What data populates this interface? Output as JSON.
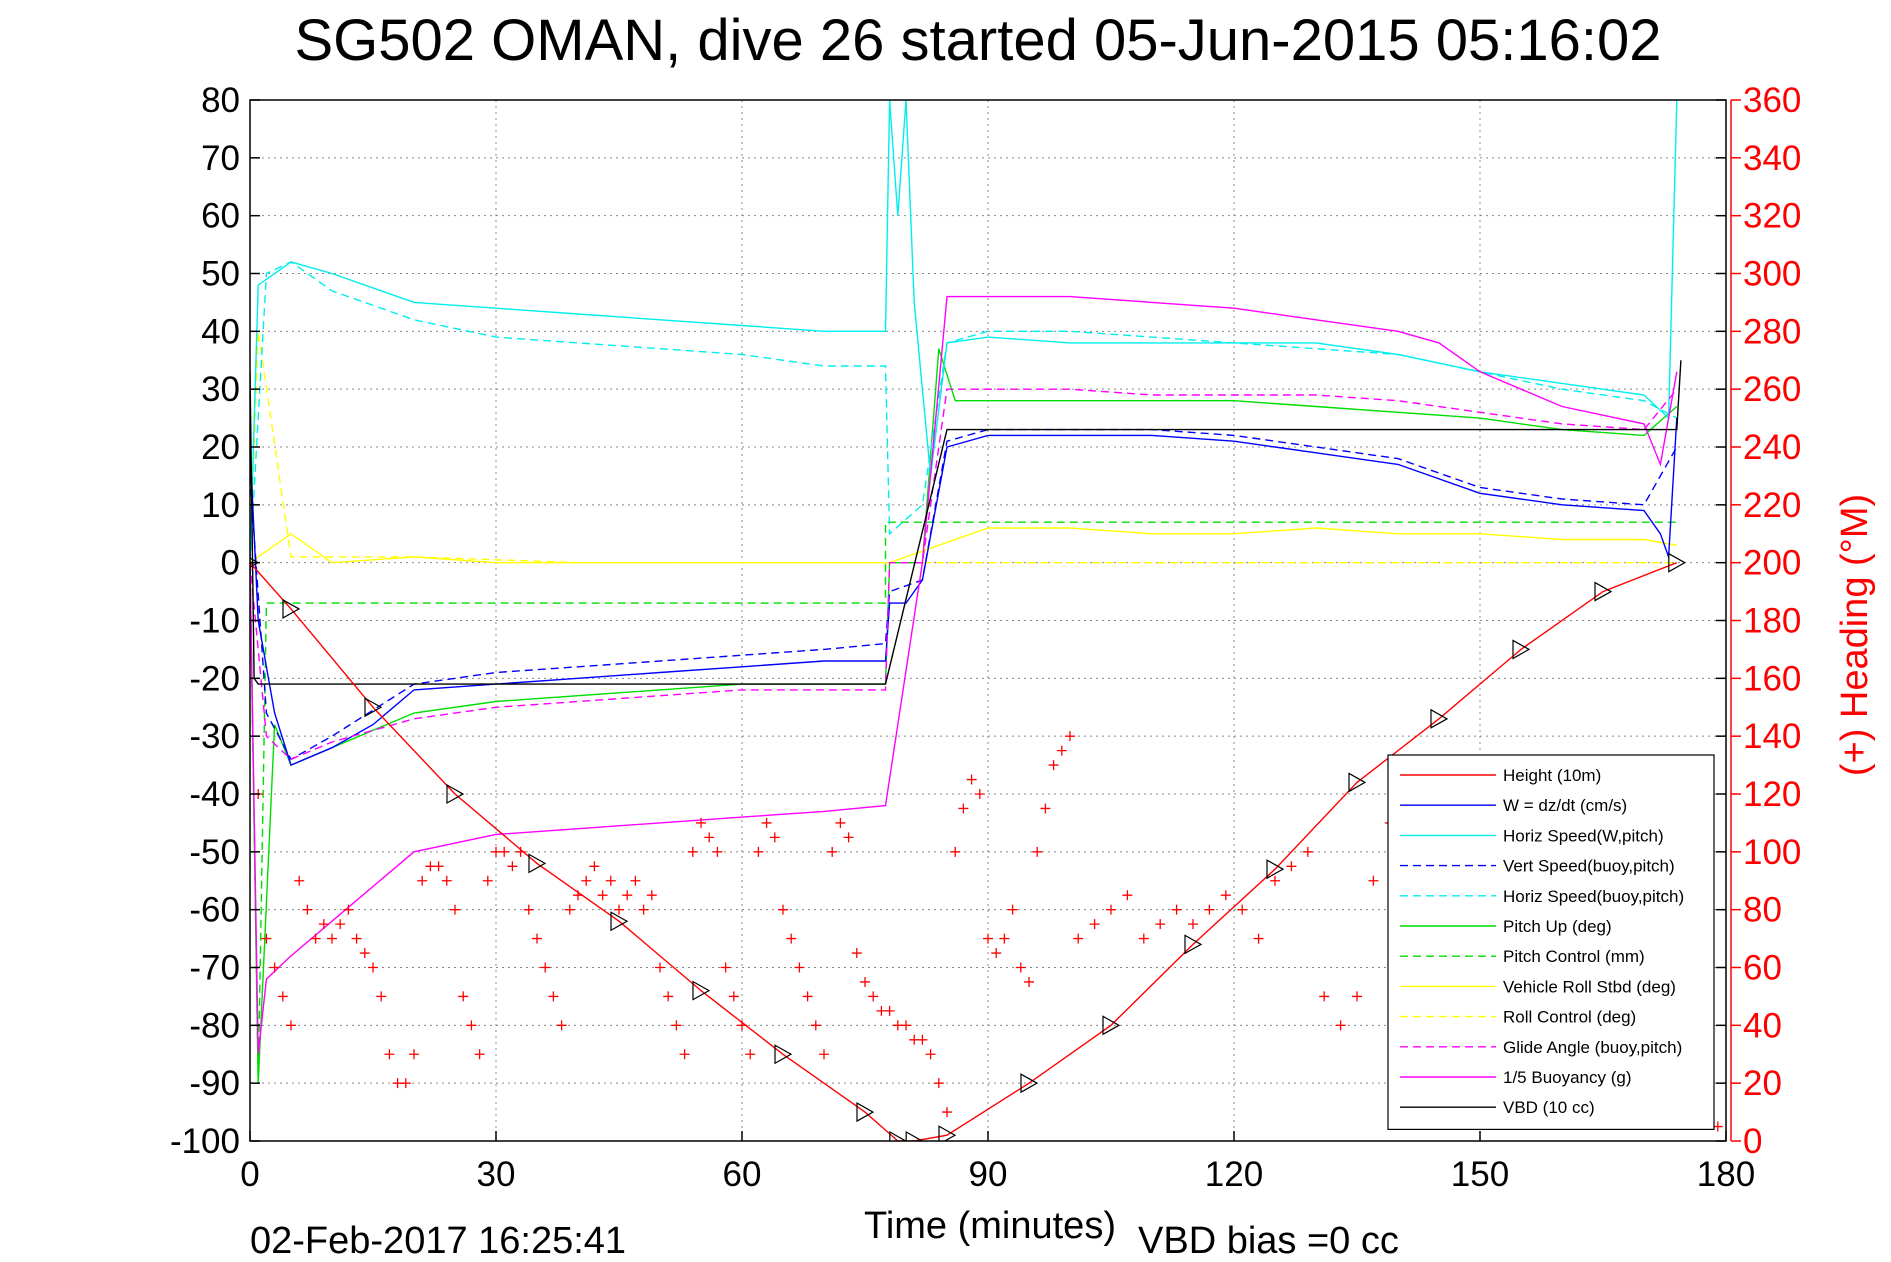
{
  "chart_data": {
    "type": "line",
    "title": "SG502 OMAN, dive 26 started 05-Jun-2015 05:16:02",
    "xlabel": "Time (minutes)",
    "ylabel": "",
    "y2label": "(+) Heading (°M)",
    "xlim": [
      0,
      180
    ],
    "ylim": [
      -100,
      80
    ],
    "y2lim": [
      0,
      360
    ],
    "x_ticks": [
      "0",
      "30",
      "60",
      "90",
      "120",
      "150",
      "180"
    ],
    "y_ticks": [
      "80",
      "70",
      "60",
      "50",
      "40",
      "30",
      "20",
      "10",
      "0",
      "-10",
      "-20",
      "-30",
      "-40",
      "-50",
      "-60",
      "-70",
      "-80",
      "-90",
      "-100"
    ],
    "y2_ticks": [
      "360",
      "340",
      "320",
      "300",
      "280",
      "260",
      "240",
      "220",
      "200",
      "180",
      "160",
      "140",
      "120",
      "100",
      "80",
      "60",
      "40",
      "20",
      "0"
    ],
    "grid": true,
    "legend_position": "bottom-right",
    "timestamp": "02-Feb-2017 16:25:41",
    "vbd_bias": "VBD bias =0 cc",
    "series": [
      {
        "name": "Height (10m)",
        "color": "#ff0000",
        "style": "solid-markers",
        "x": [
          0,
          5,
          15,
          25,
          35,
          45,
          55,
          65,
          75,
          79,
          81,
          85,
          95,
          105,
          115,
          125,
          135,
          145,
          155,
          165,
          174
        ],
        "y": [
          0,
          -8,
          -25,
          -40,
          -52,
          -62,
          -74,
          -85,
          -95,
          -100,
          -100,
          -99,
          -90,
          -80,
          -66,
          -53,
          -38,
          -27,
          -15,
          -5,
          0
        ]
      },
      {
        "name": "W = dz/dt (cm/s)",
        "color": "#0000ff",
        "style": "solid",
        "x": [
          0,
          1,
          3,
          5,
          10,
          15,
          20,
          30,
          40,
          50,
          60,
          70,
          77.5,
          78,
          80,
          82,
          85,
          90,
          100,
          110,
          120,
          125,
          130,
          140,
          150,
          160,
          170,
          172,
          173,
          174
        ],
        "y": [
          20,
          -10,
          -26,
          -35,
          -32,
          -28,
          -22,
          -21,
          -20,
          -19,
          -18,
          -17,
          -17,
          -7,
          -7,
          -3,
          20,
          22,
          22,
          22,
          21,
          20,
          19,
          17,
          12,
          10,
          9,
          5,
          1,
          25
        ]
      },
      {
        "name": "Horiz Speed(W,pitch)",
        "color": "#00eeee",
        "style": "solid",
        "x": [
          0,
          1,
          5,
          10,
          20,
          30,
          40,
          50,
          60,
          70,
          77.5,
          78,
          79,
          80,
          81,
          83,
          85,
          90,
          100,
          110,
          120,
          130,
          140,
          150,
          160,
          170,
          173,
          174
        ],
        "y": [
          0,
          48,
          52,
          50,
          45,
          44,
          43,
          42,
          41,
          40,
          40,
          80,
          60,
          80,
          45,
          15,
          38,
          39,
          38,
          38,
          38,
          38,
          36,
          33,
          31,
          29,
          25,
          80
        ]
      },
      {
        "name": "Vert Speed(buoy,pitch)",
        "color": "#0000ff",
        "style": "dashed",
        "x": [
          0,
          2,
          5,
          10,
          20,
          30,
          40,
          50,
          60,
          70,
          77.5,
          78,
          82,
          85,
          90,
          100,
          110,
          120,
          130,
          140,
          150,
          160,
          170,
          174
        ],
        "y": [
          15,
          -26,
          -34,
          -30,
          -21,
          -19,
          -18,
          -17,
          -16,
          -15,
          -14,
          -5,
          -3,
          21,
          23,
          23,
          23,
          22,
          20,
          18,
          13,
          11,
          10,
          20
        ]
      },
      {
        "name": "Horiz Speed(buoy,pitch)",
        "color": "#00eeee",
        "style": "dashed",
        "x": [
          0,
          2,
          5,
          10,
          20,
          30,
          40,
          50,
          60,
          70,
          77.5,
          78,
          82,
          85,
          90,
          100,
          110,
          120,
          130,
          140,
          150,
          160,
          170,
          174
        ],
        "y": [
          0,
          50,
          52,
          47,
          42,
          39,
          38,
          37,
          36,
          34,
          34,
          5,
          10,
          38,
          40,
          40,
          39,
          38,
          37,
          36,
          33,
          30,
          28,
          25
        ]
      },
      {
        "name": "Pitch Up (deg)",
        "color": "#00dd00",
        "style": "solid",
        "x": [
          0,
          1,
          3,
          5,
          10,
          20,
          30,
          40,
          50,
          60,
          70,
          77.5,
          78,
          82,
          84,
          86,
          90,
          100,
          110,
          120,
          130,
          140,
          150,
          160,
          170,
          174
        ],
        "y": [
          0,
          -90,
          -28,
          -35,
          -32,
          -26,
          -24,
          -23,
          -22,
          -21,
          -21,
          -21,
          0,
          0,
          37,
          28,
          28,
          28,
          28,
          28,
          27,
          26,
          25,
          23,
          22,
          27
        ]
      },
      {
        "name": "Pitch Control (mm)",
        "color": "#00dd00",
        "style": "dashed",
        "x": [
          0,
          1,
          2,
          77.5,
          77.5,
          174
        ],
        "y": [
          0,
          -90,
          -7,
          -7,
          7,
          7
        ]
      },
      {
        "name": "Vehicle Roll Stbd (deg)",
        "color": "#ffff00",
        "style": "solid",
        "x": [
          0,
          5,
          10,
          20,
          30,
          40,
          50,
          60,
          70,
          77.5,
          78,
          90,
          100,
          110,
          120,
          130,
          140,
          150,
          160,
          170,
          174
        ],
        "y": [
          0,
          5,
          0,
          1,
          0,
          0,
          0,
          0,
          0,
          0,
          0,
          6,
          6,
          5,
          5,
          6,
          5,
          5,
          4,
          4,
          3
        ]
      },
      {
        "name": "Roll Control (deg)",
        "color": "#ffff00",
        "style": "dashed",
        "x": [
          0,
          1,
          5,
          20,
          40,
          60,
          77.5,
          78,
          100,
          120,
          140,
          160,
          174
        ],
        "y": [
          0,
          40,
          1,
          1,
          0,
          0,
          0,
          0,
          0,
          0,
          0,
          0,
          0
        ]
      },
      {
        "name": "Glide Angle (buoy,pitch)",
        "color": "#ff00ff",
        "style": "dashed",
        "x": [
          0,
          2,
          5,
          10,
          20,
          30,
          40,
          50,
          60,
          70,
          77.5,
          78,
          82,
          85,
          90,
          100,
          110,
          120,
          130,
          140,
          150,
          160,
          170,
          174
        ],
        "y": [
          0,
          -30,
          -34,
          -31,
          -27,
          -25,
          -24,
          -23,
          -22,
          -22,
          -22,
          0,
          0,
          30,
          30,
          30,
          29,
          29,
          29,
          28,
          26,
          24,
          23,
          30
        ]
      },
      {
        "name": "1/5 Buoyancy (g)",
        "color": "#ff00ff",
        "style": "solid",
        "x": [
          0,
          1,
          2,
          5,
          10,
          20,
          30,
          40,
          50,
          60,
          70,
          77.5,
          82,
          85,
          90,
          100,
          110,
          120,
          130,
          140,
          145,
          150,
          160,
          170,
          172,
          174
        ],
        "y": [
          0,
          -85,
          -72,
          -68,
          -62,
          -50,
          -47,
          -46,
          -45,
          -44,
          -43,
          -42,
          0,
          46,
          46,
          46,
          45,
          44,
          42,
          40,
          38,
          33,
          27,
          24,
          17,
          33
        ]
      },
      {
        "name": "VBD (10 cc)",
        "color": "#000000",
        "style": "solid",
        "x": [
          0,
          0.5,
          1,
          2,
          77.5,
          85,
          174,
          174.5
        ],
        "y": [
          33,
          -20,
          -21,
          -21,
          -21,
          23,
          23,
          35
        ]
      }
    ],
    "heading_scatter": {
      "name": "(+) Heading",
      "color": "#ff0000",
      "axis": "right",
      "x": [
        1,
        2,
        3,
        4,
        5,
        6,
        7,
        8,
        9,
        10,
        11,
        12,
        13,
        14,
        15,
        16,
        17,
        18,
        19,
        20,
        21,
        22,
        23,
        24,
        25,
        26,
        27,
        28,
        29,
        30,
        31,
        32,
        33,
        34,
        35,
        36,
        37,
        38,
        39,
        40,
        41,
        42,
        43,
        44,
        45,
        46,
        47,
        48,
        49,
        50,
        51,
        52,
        53,
        54,
        55,
        56,
        57,
        58,
        59,
        60,
        61,
        62,
        63,
        64,
        65,
        66,
        67,
        68,
        69,
        70,
        71,
        72,
        73,
        74,
        75,
        76,
        77,
        78,
        79,
        80,
        81,
        82,
        83,
        84,
        85,
        86,
        87,
        88,
        89,
        90,
        91,
        92,
        93,
        94,
        95,
        96,
        97,
        98,
        99,
        100,
        101,
        103,
        105,
        107,
        109,
        111,
        113,
        115,
        117,
        119,
        121,
        123,
        125,
        127,
        129,
        131,
        133,
        135,
        137,
        139,
        141,
        143,
        145,
        147,
        149,
        151,
        153,
        155,
        157,
        159,
        161,
        163,
        165,
        167,
        169,
        171,
        173,
        175,
        177,
        179
      ],
      "y": [
        120,
        70,
        60,
        50,
        40,
        90,
        80,
        70,
        75,
        70,
        75,
        80,
        70,
        65,
        60,
        50,
        30,
        20,
        20,
        30,
        90,
        95,
        95,
        90,
        80,
        50,
        40,
        30,
        90,
        100,
        100,
        95,
        100,
        80,
        70,
        60,
        50,
        40,
        80,
        85,
        90,
        95,
        85,
        90,
        80,
        85,
        90,
        80,
        85,
        60,
        50,
        40,
        30,
        100,
        110,
        105,
        100,
        60,
        50,
        40,
        30,
        100,
        110,
        105,
        80,
        70,
        60,
        50,
        40,
        30,
        100,
        110,
        105,
        65,
        55,
        50,
        45,
        45,
        40,
        40,
        35,
        35,
        30,
        20,
        10,
        100,
        115,
        125,
        120,
        70,
        65,
        70,
        80,
        60,
        55,
        100,
        115,
        130,
        135,
        140,
        70,
        75,
        80,
        85,
        70,
        75,
        80,
        75,
        80,
        85,
        80,
        70,
        90,
        95,
        100,
        50,
        40,
        50,
        90,
        110,
        100,
        95,
        60,
        50,
        40,
        30,
        100,
        110,
        105,
        60,
        70,
        60,
        50,
        45,
        40,
        60,
        40,
        30,
        10,
        5
      ]
    }
  }
}
